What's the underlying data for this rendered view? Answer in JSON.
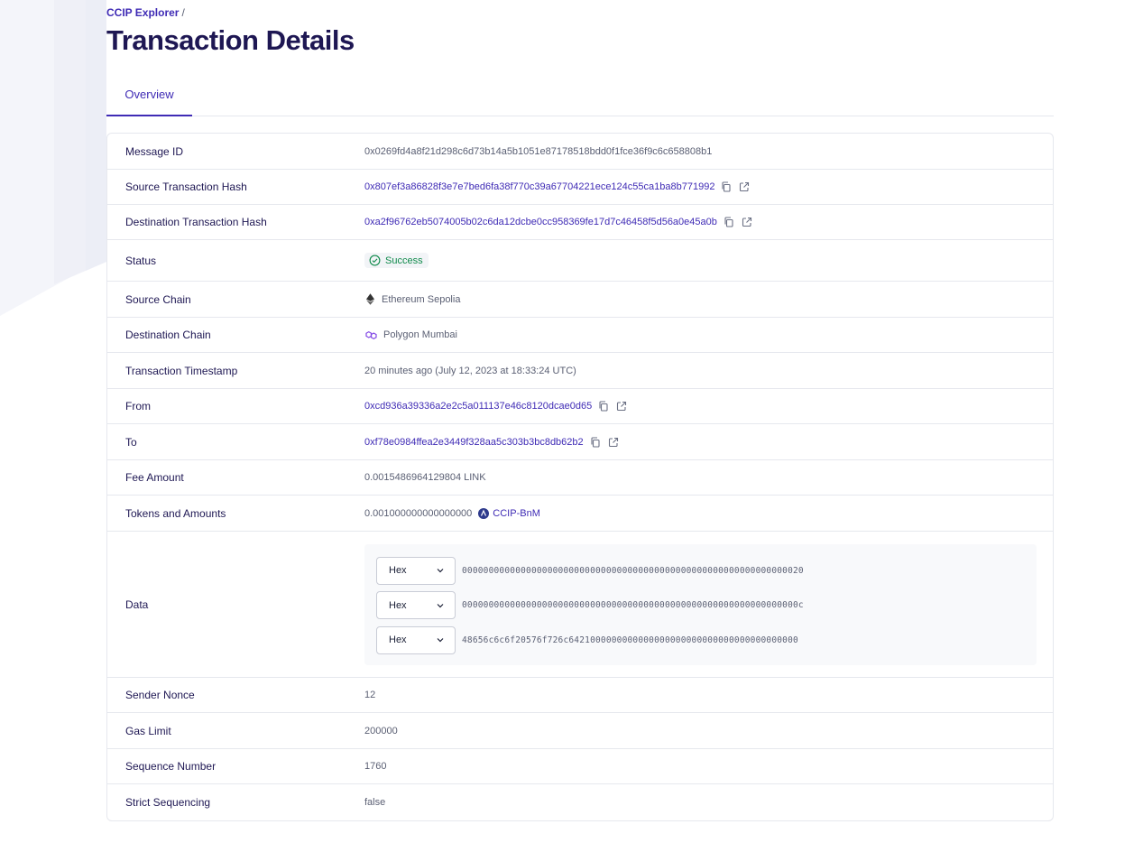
{
  "breadcrumb": {
    "root": "CCIP Explorer",
    "separator": "/"
  },
  "page_title": "Transaction Details",
  "tabs": [
    {
      "label": "Overview",
      "active": true
    }
  ],
  "colors": {
    "accent": "#3f2bb5",
    "title": "#1e1753",
    "success": "#0f8a4a",
    "border": "#e6e8ee"
  },
  "details": {
    "message_id": {
      "label": "Message ID",
      "value": "0x0269fd4a8f21d298c6d73b14a5b1051e87178518bdd0f1fce36f9c6c658808b1"
    },
    "source_tx_hash": {
      "label": "Source Transaction Hash",
      "value": "0x807ef3a86828f3e7e7bed6fa38f770c39a67704221ece124c55ca1ba8b771992",
      "icons": [
        "copy-icon",
        "external-link-icon"
      ]
    },
    "destination_tx_hash": {
      "label": "Destination Transaction Hash",
      "value": "0xa2f96762eb5074005b02c6da12dcbe0cc958369fe17d7c46458f5d56a0e45a0b",
      "icons": [
        "copy-icon",
        "external-link-icon"
      ]
    },
    "status": {
      "label": "Status",
      "value": "Success",
      "icon": "check-circle-icon"
    },
    "source_chain": {
      "label": "Source Chain",
      "value": "Ethereum Sepolia",
      "icon": "ethereum-icon"
    },
    "destination_chain": {
      "label": "Destination Chain",
      "value": "Polygon Mumbai",
      "icon": "polygon-icon"
    },
    "timestamp": {
      "label": "Transaction Timestamp",
      "value": "20 minutes ago (July 12, 2023 at 18:33:24 UTC)"
    },
    "from": {
      "label": "From",
      "value": "0xcd936a39336a2e2c5a011137e46c8120dcae0d65",
      "icons": [
        "copy-icon",
        "external-link-icon"
      ]
    },
    "to": {
      "label": "To",
      "value": "0xf78e0984ffea2e3449f328aa5c303b3bc8db62b2",
      "icons": [
        "copy-icon",
        "external-link-icon"
      ]
    },
    "fee_amount": {
      "label": "Fee Amount",
      "value": "0.0015486964129804 LINK"
    },
    "tokens_amounts": {
      "label": "Tokens and Amounts",
      "amount": "0.001000000000000000",
      "token": "CCIP-BnM",
      "icon": "ccip-bnm-token-icon"
    },
    "data": {
      "label": "Data",
      "lines": [
        {
          "format": "Hex",
          "value": "0000000000000000000000000000000000000000000000000000000000000020"
        },
        {
          "format": "Hex",
          "value": "000000000000000000000000000000000000000000000000000000000000000c"
        },
        {
          "format": "Hex",
          "value": "48656c6c6f20576f726c6421000000000000000000000000000000000000000"
        }
      ]
    },
    "sender_nonce": {
      "label": "Sender Nonce",
      "value": "12"
    },
    "gas_limit": {
      "label": "Gas Limit",
      "value": "200000"
    },
    "sequence_number": {
      "label": "Sequence Number",
      "value": "1760"
    },
    "strict_sequencing": {
      "label": "Strict Sequencing",
      "value": "false"
    }
  }
}
